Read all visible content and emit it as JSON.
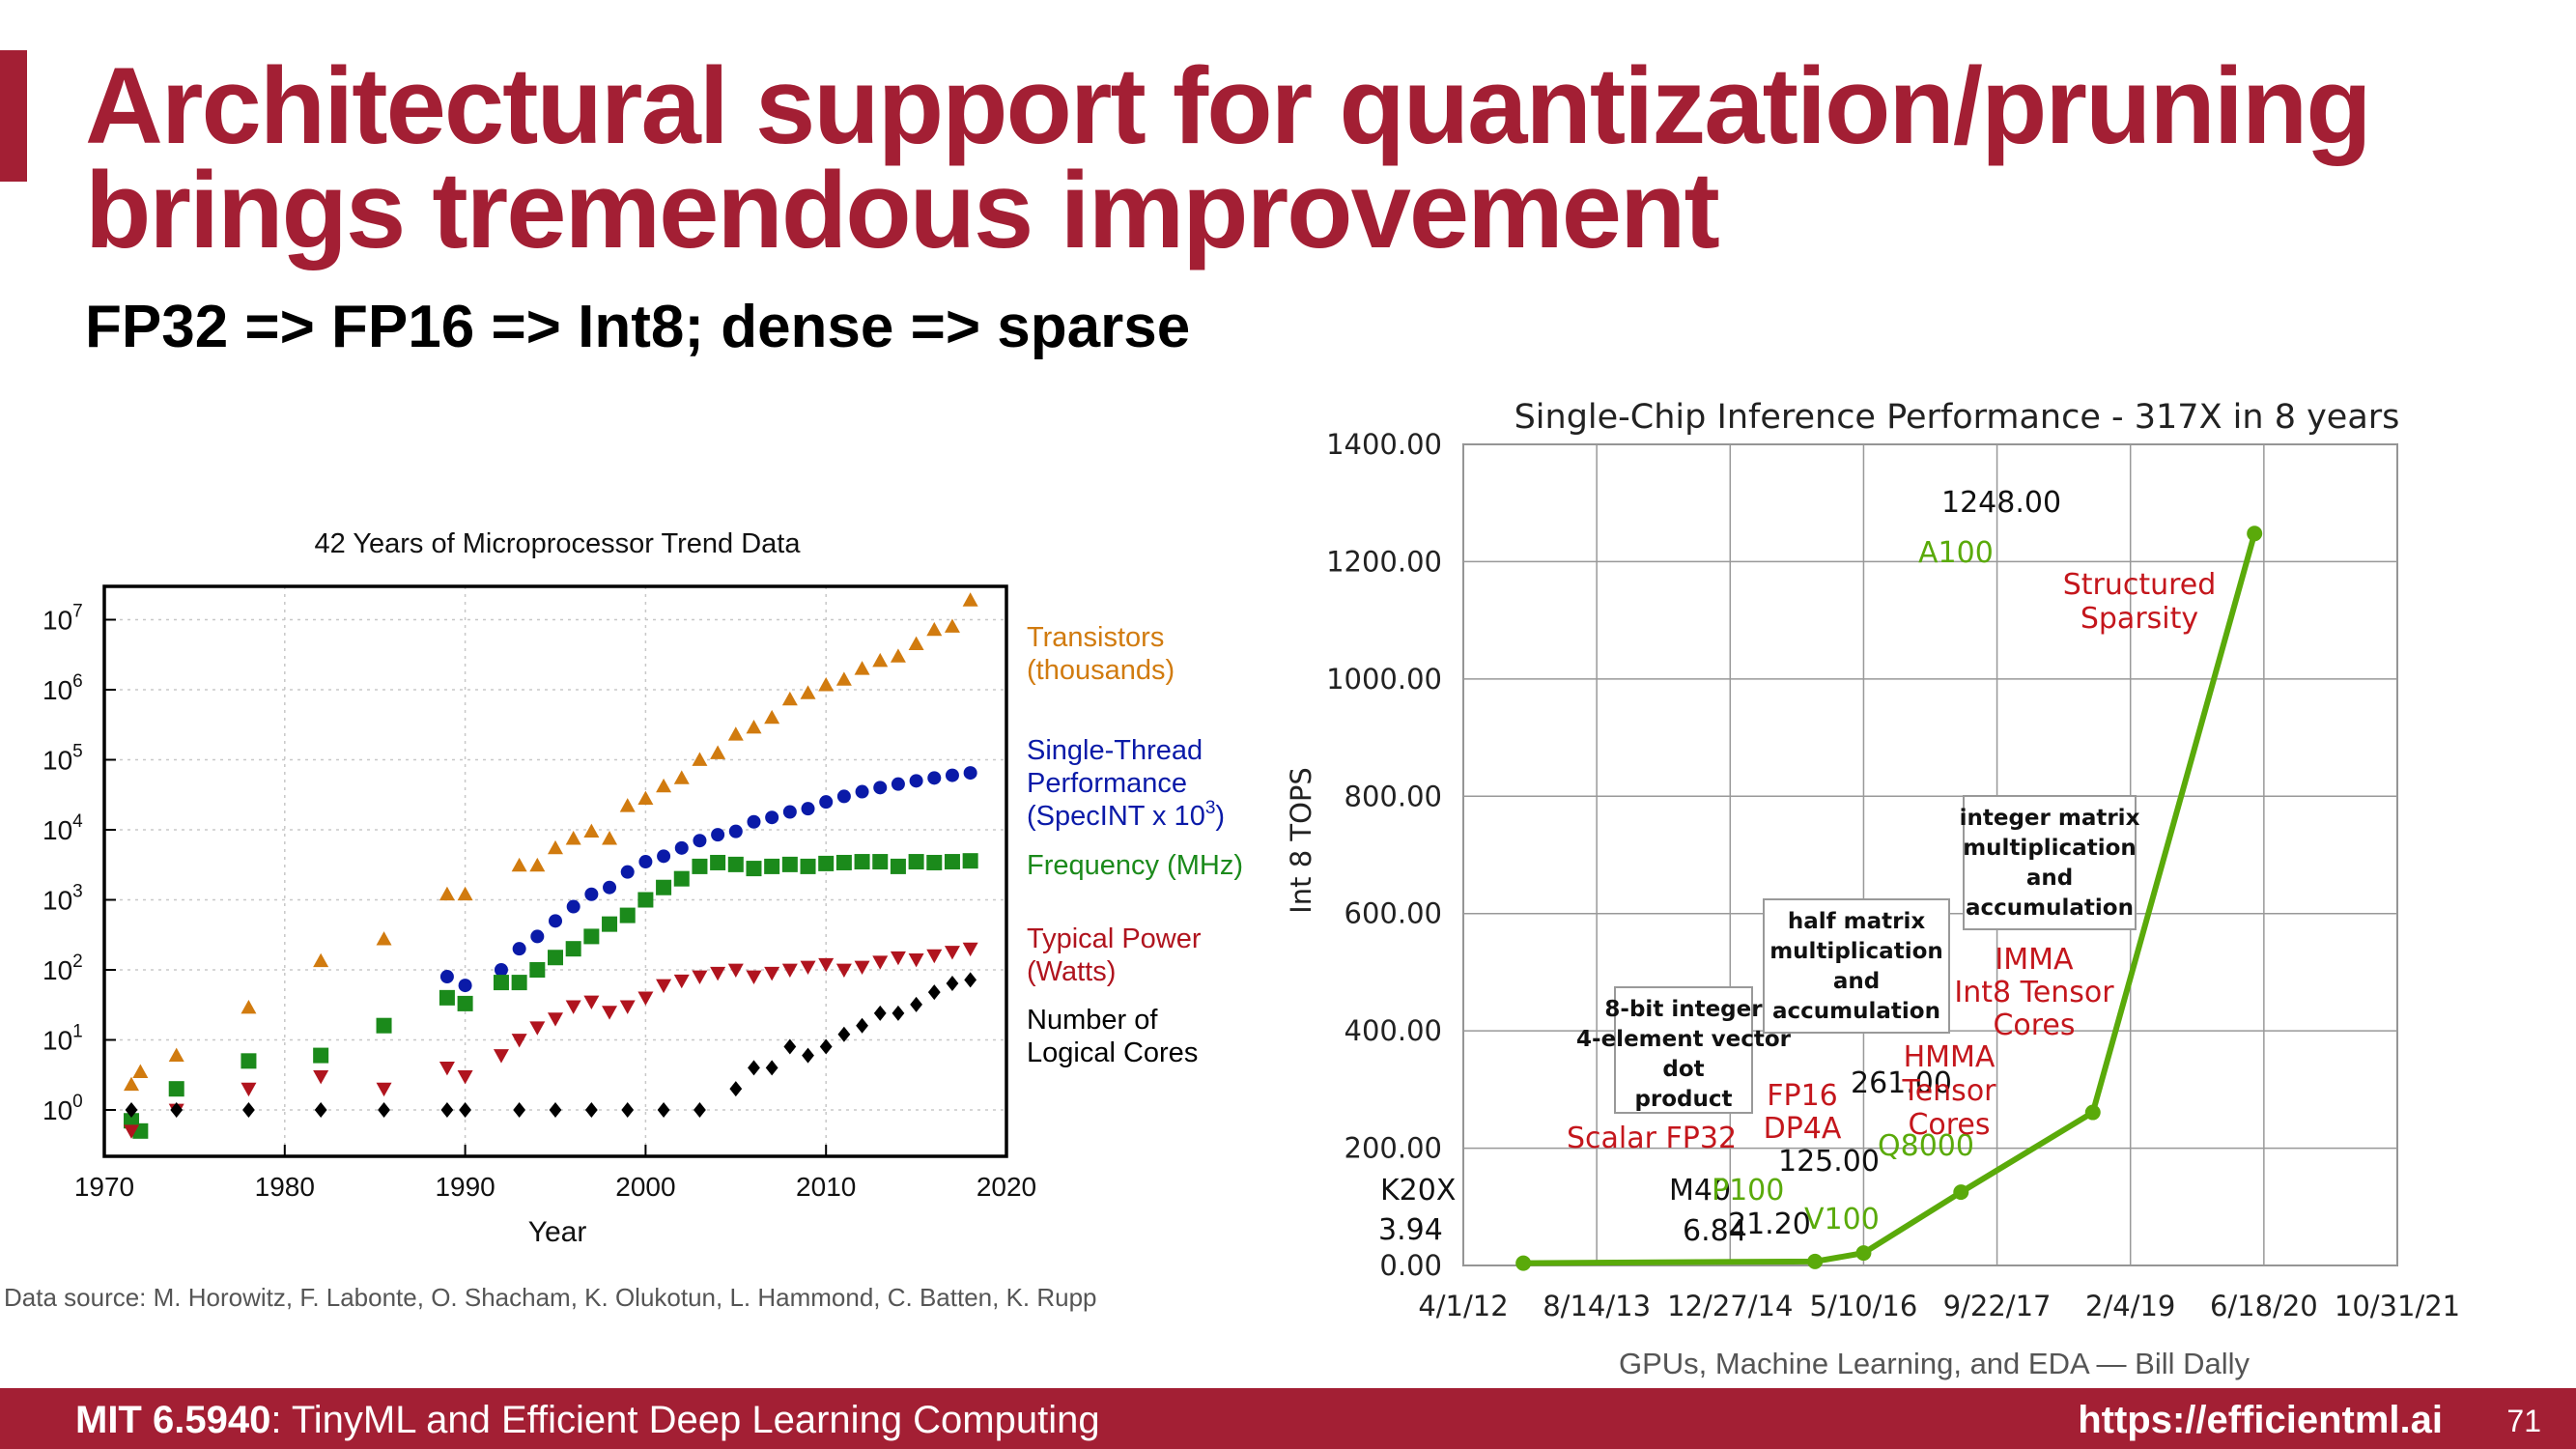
{
  "slide": {
    "title_line1": "Architectural support for quantization/pruning",
    "title_line2": "brings tremendous improvement",
    "subtitle": "FP32 => FP16 => Int8; dense => sparse",
    "footer_course_bold": "MIT 6.5940",
    "footer_course_rest": ": TinyML and Efficient Deep Learning Computing",
    "footer_url": "https://efficientml.ai",
    "page_number": "71",
    "colors": {
      "accent": "#a31f34",
      "transistors": "#d17b0f",
      "perf": "#0a1aa8",
      "freq": "#1b8a1b",
      "power": "#b0141e",
      "cores": "#000000",
      "gpu_line": "#5aaa0a"
    }
  },
  "chart_data": [
    {
      "type": "scatter",
      "title": "42 Years of Microprocessor Trend Data",
      "xlabel": "Year",
      "ylabel": "",
      "xlim": [
        1970,
        2020
      ],
      "ylim": [
        0.3,
        30000000
      ],
      "log_y": true,
      "x_ticks": [
        "1970",
        "1980",
        "1990",
        "2000",
        "2010",
        "2020"
      ],
      "y_ticks": [
        {
          "base": "10",
          "exp": "0"
        },
        {
          "base": "10",
          "exp": "1"
        },
        {
          "base": "10",
          "exp": "2"
        },
        {
          "base": "10",
          "exp": "3"
        },
        {
          "base": "10",
          "exp": "4"
        },
        {
          "base": "10",
          "exp": "5"
        },
        {
          "base": "10",
          "exp": "6"
        },
        {
          "base": "10",
          "exp": "7"
        }
      ],
      "grid": true,
      "legend_position": "right",
      "source": "Data source: M. Horowitz, F. Labonte, O. Shacham, K. Olukotun, L. Hammond, C. Batten, K. Rupp",
      "series": [
        {
          "name": "Transistors (thousands)",
          "legend_lines": [
            "Transistors",
            "(thousands)"
          ],
          "marker": "triangle-up",
          "color": "#d17b0f",
          "points": [
            [
              1971.5,
              2.3
            ],
            [
              1972,
              3.5
            ],
            [
              1974,
              6
            ],
            [
              1978,
              29
            ],
            [
              1982,
              134
            ],
            [
              1985.5,
              275
            ],
            [
              1989,
              1200
            ],
            [
              1990,
              1200
            ],
            [
              1993,
              3100
            ],
            [
              1994,
              3100
            ],
            [
              1995,
              5500
            ],
            [
              1996,
              7500
            ],
            [
              1997,
              9500
            ],
            [
              1998,
              7500
            ],
            [
              1999,
              22000
            ],
            [
              2000,
              28000
            ],
            [
              2001,
              42000
            ],
            [
              2002,
              55000
            ],
            [
              2003,
              100000
            ],
            [
              2004,
              125000
            ],
            [
              2005,
              230000
            ],
            [
              2006,
              290000
            ],
            [
              2007,
              400000
            ],
            [
              2008,
              730000
            ],
            [
              2009,
              900000
            ],
            [
              2010,
              1170000
            ],
            [
              2011,
              1400000
            ],
            [
              2012,
              2000000
            ],
            [
              2013,
              2600000
            ],
            [
              2014,
              3000000
            ],
            [
              2015,
              4500000
            ],
            [
              2016,
              7200000
            ],
            [
              2017,
              8000000
            ],
            [
              2018,
              19000000
            ]
          ]
        },
        {
          "name": "Single-Thread Performance (SpecINT x 10^3)",
          "legend_lines": [
            "Single-Thread",
            "Performance",
            "(SpecINT x 10"
          ],
          "legend_sup": "3",
          "legend_tail": ")",
          "marker": "circle",
          "color": "#0a1aa8",
          "points": [
            [
              1989,
              80
            ],
            [
              1990,
              60
            ],
            [
              1992,
              100
            ],
            [
              1993,
              200
            ],
            [
              1994,
              300
            ],
            [
              1995,
              500
            ],
            [
              1996,
              800
            ],
            [
              1997,
              1200
            ],
            [
              1998,
              1500
            ],
            [
              1999,
              2500
            ],
            [
              2000,
              3500
            ],
            [
              2001,
              4200
            ],
            [
              2002,
              5500
            ],
            [
              2003,
              7000
            ],
            [
              2004,
              8500
            ],
            [
              2005,
              9500
            ],
            [
              2006,
              13000
            ],
            [
              2007,
              15000
            ],
            [
              2008,
              18000
            ],
            [
              2009,
              20000
            ],
            [
              2010,
              25000
            ],
            [
              2011,
              30000
            ],
            [
              2012,
              35000
            ],
            [
              2013,
              40000
            ],
            [
              2014,
              45000
            ],
            [
              2015,
              50000
            ],
            [
              2016,
              55000
            ],
            [
              2017,
              60000
            ],
            [
              2018,
              65000
            ]
          ]
        },
        {
          "name": "Frequency (MHz)",
          "legend_lines": [
            "Frequency (MHz)"
          ],
          "marker": "square",
          "color": "#1b8a1b",
          "points": [
            [
              1971.5,
              0.7
            ],
            [
              1972,
              0.5
            ],
            [
              1974,
              2
            ],
            [
              1978,
              5
            ],
            [
              1982,
              6
            ],
            [
              1985.5,
              16
            ],
            [
              1989,
              40
            ],
            [
              1990,
              33
            ],
            [
              1992,
              66
            ],
            [
              1993,
              66
            ],
            [
              1994,
              100
            ],
            [
              1995,
              150
            ],
            [
              1996,
              200
            ],
            [
              1997,
              300
            ],
            [
              1998,
              450
            ],
            [
              1999,
              600
            ],
            [
              2000,
              1000
            ],
            [
              2001,
              1500
            ],
            [
              2002,
              2000
            ],
            [
              2003,
              3000
            ],
            [
              2004,
              3400
            ],
            [
              2005,
              3200
            ],
            [
              2006,
              2800
            ],
            [
              2007,
              3000
            ],
            [
              2008,
              3200
            ],
            [
              2009,
              3000
            ],
            [
              2010,
              3300
            ],
            [
              2011,
              3400
            ],
            [
              2012,
              3500
            ],
            [
              2013,
              3500
            ],
            [
              2014,
              3000
            ],
            [
              2015,
              3500
            ],
            [
              2016,
              3400
            ],
            [
              2017,
              3500
            ],
            [
              2018,
              3600
            ]
          ]
        },
        {
          "name": "Typical Power (Watts)",
          "legend_lines": [
            "Typical Power",
            "(Watts)"
          ],
          "marker": "triangle-down",
          "color": "#b0141e",
          "points": [
            [
              1971.5,
              0.5
            ],
            [
              1974,
              1
            ],
            [
              1978,
              2
            ],
            [
              1982,
              3
            ],
            [
              1985.5,
              2
            ],
            [
              1989,
              4
            ],
            [
              1990,
              3
            ],
            [
              1992,
              6
            ],
            [
              1993,
              10
            ],
            [
              1994,
              15
            ],
            [
              1995,
              20
            ],
            [
              1996,
              30
            ],
            [
              1997,
              35
            ],
            [
              1998,
              25
            ],
            [
              1999,
              30
            ],
            [
              2000,
              40
            ],
            [
              2001,
              60
            ],
            [
              2002,
              70
            ],
            [
              2003,
              80
            ],
            [
              2004,
              90
            ],
            [
              2005,
              100
            ],
            [
              2006,
              80
            ],
            [
              2007,
              90
            ],
            [
              2008,
              100
            ],
            [
              2009,
              110
            ],
            [
              2010,
              120
            ],
            [
              2011,
              100
            ],
            [
              2012,
              110
            ],
            [
              2013,
              130
            ],
            [
              2014,
              150
            ],
            [
              2015,
              140
            ],
            [
              2016,
              160
            ],
            [
              2017,
              180
            ],
            [
              2018,
              200
            ]
          ]
        },
        {
          "name": "Number of Logical Cores",
          "legend_lines": [
            "Number of",
            "Logical Cores"
          ],
          "marker": "diamond",
          "color": "#000000",
          "points": [
            [
              1971.5,
              1
            ],
            [
              1974,
              1
            ],
            [
              1978,
              1
            ],
            [
              1982,
              1
            ],
            [
              1985.5,
              1
            ],
            [
              1989,
              1
            ],
            [
              1990,
              1
            ],
            [
              1993,
              1
            ],
            [
              1995,
              1
            ],
            [
              1997,
              1
            ],
            [
              1999,
              1
            ],
            [
              2001,
              1
            ],
            [
              2003,
              1
            ],
            [
              2005,
              2
            ],
            [
              2006,
              4
            ],
            [
              2007,
              4
            ],
            [
              2008,
              8
            ],
            [
              2009,
              6
            ],
            [
              2010,
              8
            ],
            [
              2011,
              12
            ],
            [
              2012,
              16
            ],
            [
              2013,
              24
            ],
            [
              2014,
              24
            ],
            [
              2015,
              32
            ],
            [
              2016,
              48
            ],
            [
              2017,
              64
            ],
            [
              2018,
              72
            ]
          ]
        }
      ]
    },
    {
      "type": "line",
      "title": "Single-Chip Inference Performance - 317X in 8 years",
      "xlabel": "",
      "ylabel": "Int 8 TOPS",
      "ylim": [
        0,
        1400
      ],
      "y_ticks": [
        "0.00",
        "200.00",
        "400.00",
        "600.00",
        "800.00",
        "1000.00",
        "1200.00",
        "1400.00"
      ],
      "x_ticks": [
        "4/1/12",
        "8/14/13",
        "12/27/14",
        "5/10/16",
        "9/22/17",
        "2/4/19",
        "6/18/20",
        "10/31/21"
      ],
      "grid": true,
      "credit": "GPUs, Machine Learning, and EDA — Bill Dally",
      "points": [
        {
          "chip": "K20X",
          "date": "11/12/12",
          "value": 3.94,
          "label": "3.94"
        },
        {
          "chip": "M40",
          "date": "11/10/15",
          "value": 6.84,
          "label": "6.84"
        },
        {
          "chip": "P100",
          "date": "5/10/16",
          "value": 21.2,
          "label": "21.20"
        },
        {
          "chip": "V100",
          "date": "5/10/17",
          "value": 125.0,
          "label": "125.00"
        },
        {
          "chip": "Q8000",
          "date": "9/16/18",
          "value": 261.0,
          "label": "261.00"
        },
        {
          "chip": "A100",
          "date": "5/14/20",
          "value": 1248.0,
          "label": "1248.00"
        }
      ],
      "annotations": [
        {
          "text": "Scalar FP32"
        },
        {
          "text": "FP16 DP4A"
        },
        {
          "text": "HMMA Tensor Cores"
        },
        {
          "text": "IMMA Int8 Tensor Cores"
        },
        {
          "text": "Structured Sparsity"
        },
        {
          "text": "8-bit integer 4-element vector dot product"
        },
        {
          "text": "half matrix multiplication and accumulation"
        },
        {
          "text": "integer matrix multiplication and accumulation"
        }
      ]
    }
  ]
}
